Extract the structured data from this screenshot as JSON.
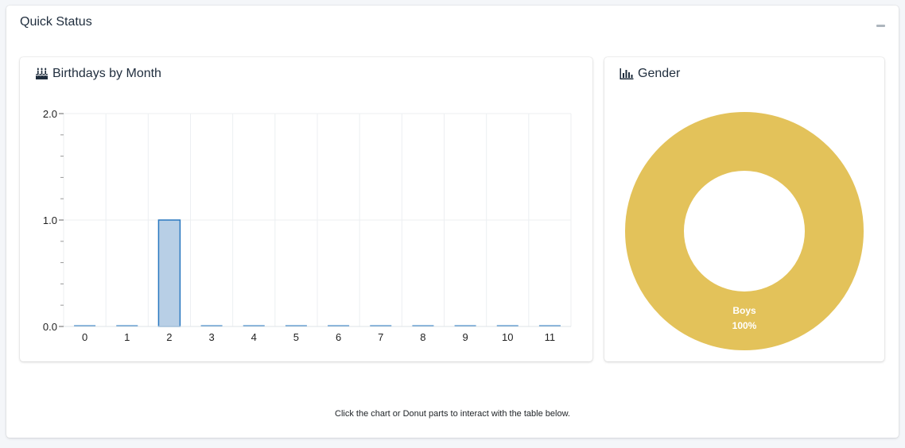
{
  "panel": {
    "title": "Quick Status",
    "collapse_icon": "minus-icon",
    "footer_note": "Click the chart or Donut parts to interact with the table below."
  },
  "birthdays": {
    "title": "Birthdays by Month",
    "icon": "birthday-cake-icon"
  },
  "gender": {
    "title": "Gender",
    "icon": "bar-chart-icon"
  },
  "chart_data": [
    {
      "type": "bar",
      "title": "Birthdays by Month",
      "categories": [
        "0",
        "1",
        "2",
        "3",
        "4",
        "5",
        "6",
        "7",
        "8",
        "9",
        "10",
        "11"
      ],
      "values": [
        0,
        0,
        1,
        0,
        0,
        0,
        0,
        0,
        0,
        0,
        0,
        0
      ],
      "ylim": [
        0,
        2
      ],
      "yticks": [
        "0.0",
        "1.0",
        "2.0"
      ],
      "grid": true,
      "bar_color": "#b8cfe6",
      "bar_border": "#2a78c0"
    },
    {
      "type": "pie",
      "title": "Gender",
      "donut": true,
      "slices": [
        {
          "label": "Boys",
          "value": 100,
          "percent_label": "100%",
          "color": "#e3c25a"
        }
      ]
    }
  ]
}
